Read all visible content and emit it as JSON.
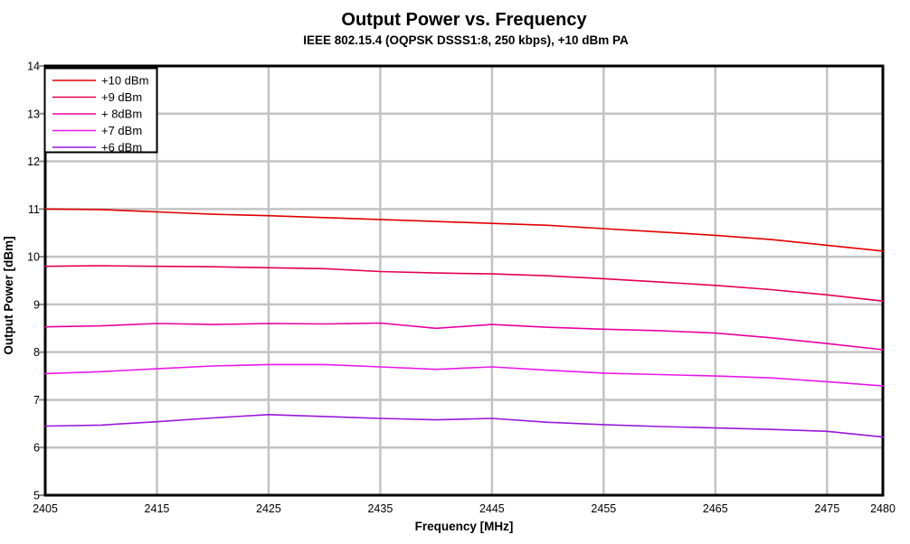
{
  "chart_data": {
    "type": "line",
    "title": "Output Power vs. Frequency",
    "subtitle": "IEEE 802.15.4 (OQPSK DSSS1:8, 250 kbps), +10 dBm PA",
    "xlabel": "Frequency [MHz]",
    "ylabel": "Output Power [dBm]",
    "xlim": [
      2405,
      2480
    ],
    "ylim": [
      5,
      14
    ],
    "xticks": [
      2405,
      2415,
      2425,
      2435,
      2445,
      2455,
      2465,
      2475,
      2480
    ],
    "yticks": [
      5,
      6,
      7,
      8,
      9,
      10,
      11,
      12,
      13,
      14
    ],
    "grid": true,
    "legend_position": "top-left",
    "colors": {
      "background": "#ffffff",
      "grid": "#c3c3c3",
      "axis": "#000000",
      "tick": "#909090"
    },
    "x": [
      2405,
      2410,
      2415,
      2420,
      2425,
      2430,
      2435,
      2440,
      2445,
      2450,
      2455,
      2460,
      2465,
      2470,
      2475,
      2480
    ],
    "series": [
      {
        "name": "+10 dBm",
        "color": "#e00000",
        "values": [
          11.0,
          10.99,
          10.94,
          10.89,
          10.86,
          10.82,
          10.78,
          10.74,
          10.7,
          10.66,
          10.59,
          10.52,
          10.45,
          10.36,
          10.24,
          10.12
        ]
      },
      {
        "name": "+9 dBm",
        "color": "#e30050",
        "values": [
          9.8,
          9.81,
          9.8,
          9.79,
          9.77,
          9.75,
          9.69,
          9.66,
          9.64,
          9.6,
          9.54,
          9.47,
          9.4,
          9.31,
          9.2,
          9.07
        ]
      },
      {
        "name": "+ 8dBm",
        "color": "#e800a0",
        "values": [
          8.53,
          8.55,
          8.6,
          8.58,
          8.6,
          8.59,
          8.61,
          8.5,
          8.58,
          8.52,
          8.48,
          8.45,
          8.4,
          8.3,
          8.18,
          8.05
        ]
      },
      {
        "name": "+7 dBm",
        "color": "#e818e8",
        "values": [
          7.55,
          7.59,
          7.65,
          7.71,
          7.74,
          7.74,
          7.69,
          7.64,
          7.69,
          7.62,
          7.56,
          7.53,
          7.5,
          7.46,
          7.38,
          7.29
        ]
      },
      {
        "name": "+6 dBm",
        "color": "#9818d8",
        "values": [
          6.45,
          6.47,
          6.54,
          6.62,
          6.69,
          6.65,
          6.61,
          6.58,
          6.61,
          6.53,
          6.48,
          6.44,
          6.41,
          6.38,
          6.34,
          6.22
        ]
      }
    ]
  }
}
